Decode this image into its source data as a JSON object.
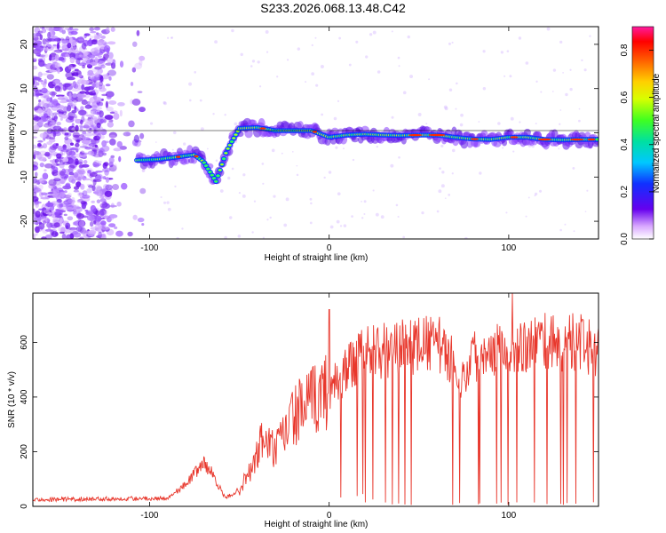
{
  "title": "S233.2026.068.13.48.C42",
  "chart_data": [
    {
      "type": "heatmap",
      "xlabel": "Height of straight line (km)",
      "ylabel": "Frequency (Hz)",
      "xlim": [
        -165,
        150
      ],
      "ylim": [
        -24,
        24
      ],
      "xticks": [
        -100,
        0,
        100
      ],
      "yticks": [
        -20,
        -10,
        0,
        10,
        20
      ],
      "colorbar": {
        "label": "Normalized spectral amplitude",
        "range": [
          0,
          0.9
        ],
        "ticks": [
          "0.0",
          "0.2",
          "0.4",
          "0.6",
          "0.8"
        ]
      },
      "ridge": [
        [
          -107,
          -6.2
        ],
        [
          -95,
          -6
        ],
        [
          -85,
          -5.5
        ],
        [
          -80,
          -5.2
        ],
        [
          -75,
          -5
        ],
        [
          -70,
          -6.5
        ],
        [
          -63,
          -11
        ],
        [
          -57,
          -4
        ],
        [
          -50,
          1
        ],
        [
          -40,
          1.2
        ],
        [
          -30,
          0.5
        ],
        [
          -20,
          0.5
        ],
        [
          -10,
          0.5
        ],
        [
          0,
          -1
        ],
        [
          10,
          -0.5
        ],
        [
          20,
          -0.3
        ],
        [
          30,
          -0.5
        ],
        [
          40,
          -0.6
        ],
        [
          50,
          -0.5
        ],
        [
          60,
          -0.5
        ],
        [
          70,
          -1
        ],
        [
          80,
          -1.4
        ],
        [
          90,
          -1.5
        ],
        [
          100,
          -1
        ],
        [
          110,
          -1
        ],
        [
          120,
          -1.5
        ],
        [
          130,
          -1.6
        ],
        [
          140,
          -1.5
        ],
        [
          150,
          -1.5
        ]
      ]
    },
    {
      "type": "line",
      "xlabel": "Height of straight line (km)",
      "ylabel": "SNR (10 * v/v)",
      "xlim": [
        -165,
        150
      ],
      "ylim": [
        0,
        780
      ],
      "xticks": [
        -100,
        0,
        100
      ],
      "yticks": [
        0,
        200,
        400,
        600
      ],
      "series": [
        {
          "name": "SNR",
          "color": "#e8372c",
          "envelope_x": [
            -165,
            -90,
            -80,
            -70,
            -65,
            -58,
            -50,
            -42,
            -37,
            -30,
            -20,
            -10,
            0,
            10,
            20,
            40,
            60,
            70,
            75,
            80,
            90,
            100,
            110,
            120,
            130,
            140,
            150
          ],
          "envelope_y": [
            25,
            30,
            80,
            160,
            120,
            30,
            60,
            150,
            250,
            200,
            330,
            380,
            430,
            500,
            560,
            580,
            600,
            520,
            460,
            550,
            580,
            590,
            590,
            600,
            600,
            600,
            560
          ],
          "spikes": [
            {
              "x": 0,
              "y": 720
            },
            {
              "x": 102,
              "y": 780
            },
            {
              "x": 65,
              "y": 630
            }
          ]
        }
      ]
    }
  ]
}
